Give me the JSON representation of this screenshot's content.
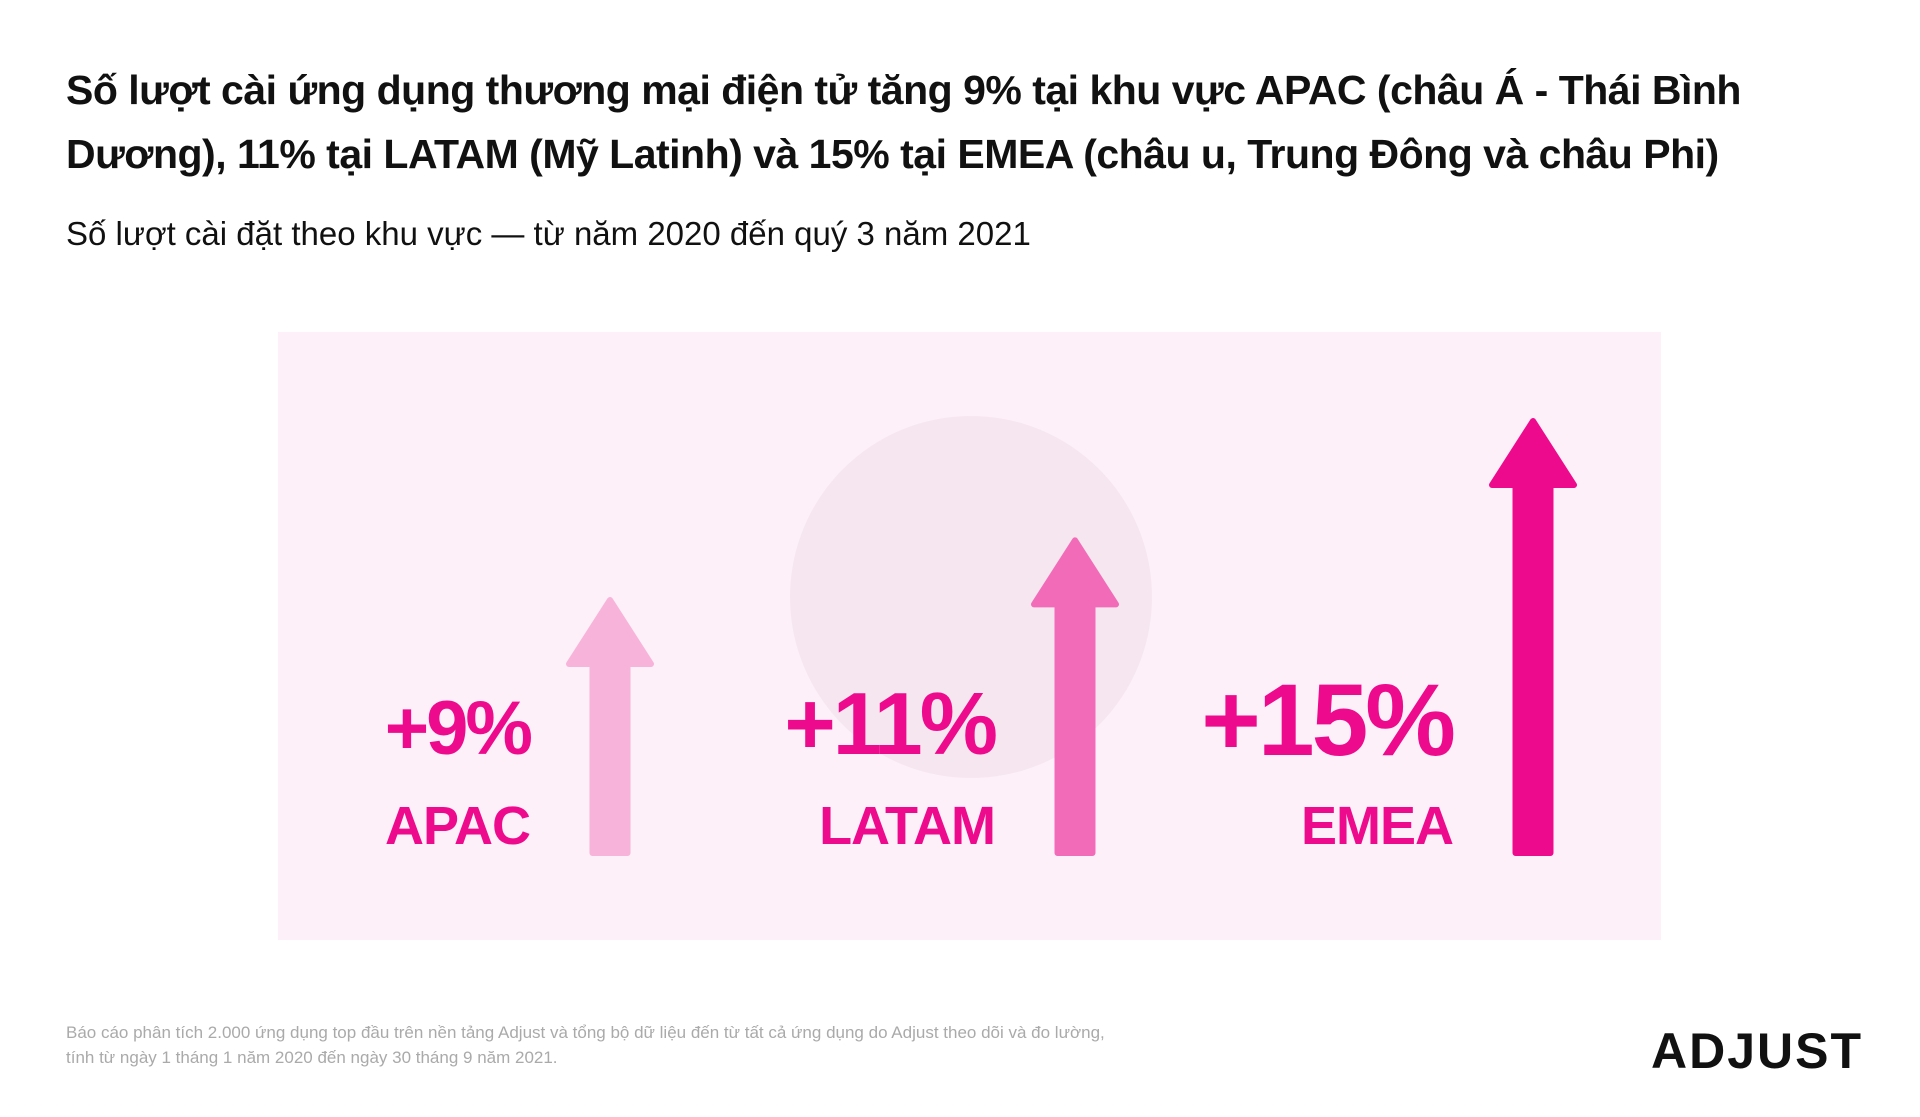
{
  "header": {
    "title": "Số lượt cài ứng dụng thương mại điện tử tăng 9% tại khu vực APAC (châu Á - Thái Bình Dương), 11% tại LATAM (Mỹ Latinh) và 15% tại EMEA (châu  u, Trung Đông và châu Phi)",
    "subtitle": "Số lượt cài đặt theo khu vực — từ năm 2020 đến quý 3 năm 2021"
  },
  "regions": [
    {
      "label": "APAC",
      "change": "+9%",
      "value": 9,
      "color": "#f7b3d9"
    },
    {
      "label": "LATAM",
      "change": "+11%",
      "value": 11,
      "color": "#f26bb9"
    },
    {
      "label": "EMEA",
      "change": "+15%",
      "value": 15,
      "color": "#ee0a8c"
    }
  ],
  "footer": {
    "line1": "Báo cáo phân tích 2.000 ứng dụng top đầu trên nền tảng Adjust và tổng bộ dữ liệu đến từ tất cả ứng dụng do Adjust theo dõi và đo lường,",
    "line2": "tính từ ngày 1 tháng 1 năm 2020 đến ngày 30 tháng 9 năm 2021."
  },
  "logo": {
    "text": "ADJUST"
  },
  "colors": {
    "accent": "#ee0a8c",
    "panel": "#fdf0f8"
  }
}
